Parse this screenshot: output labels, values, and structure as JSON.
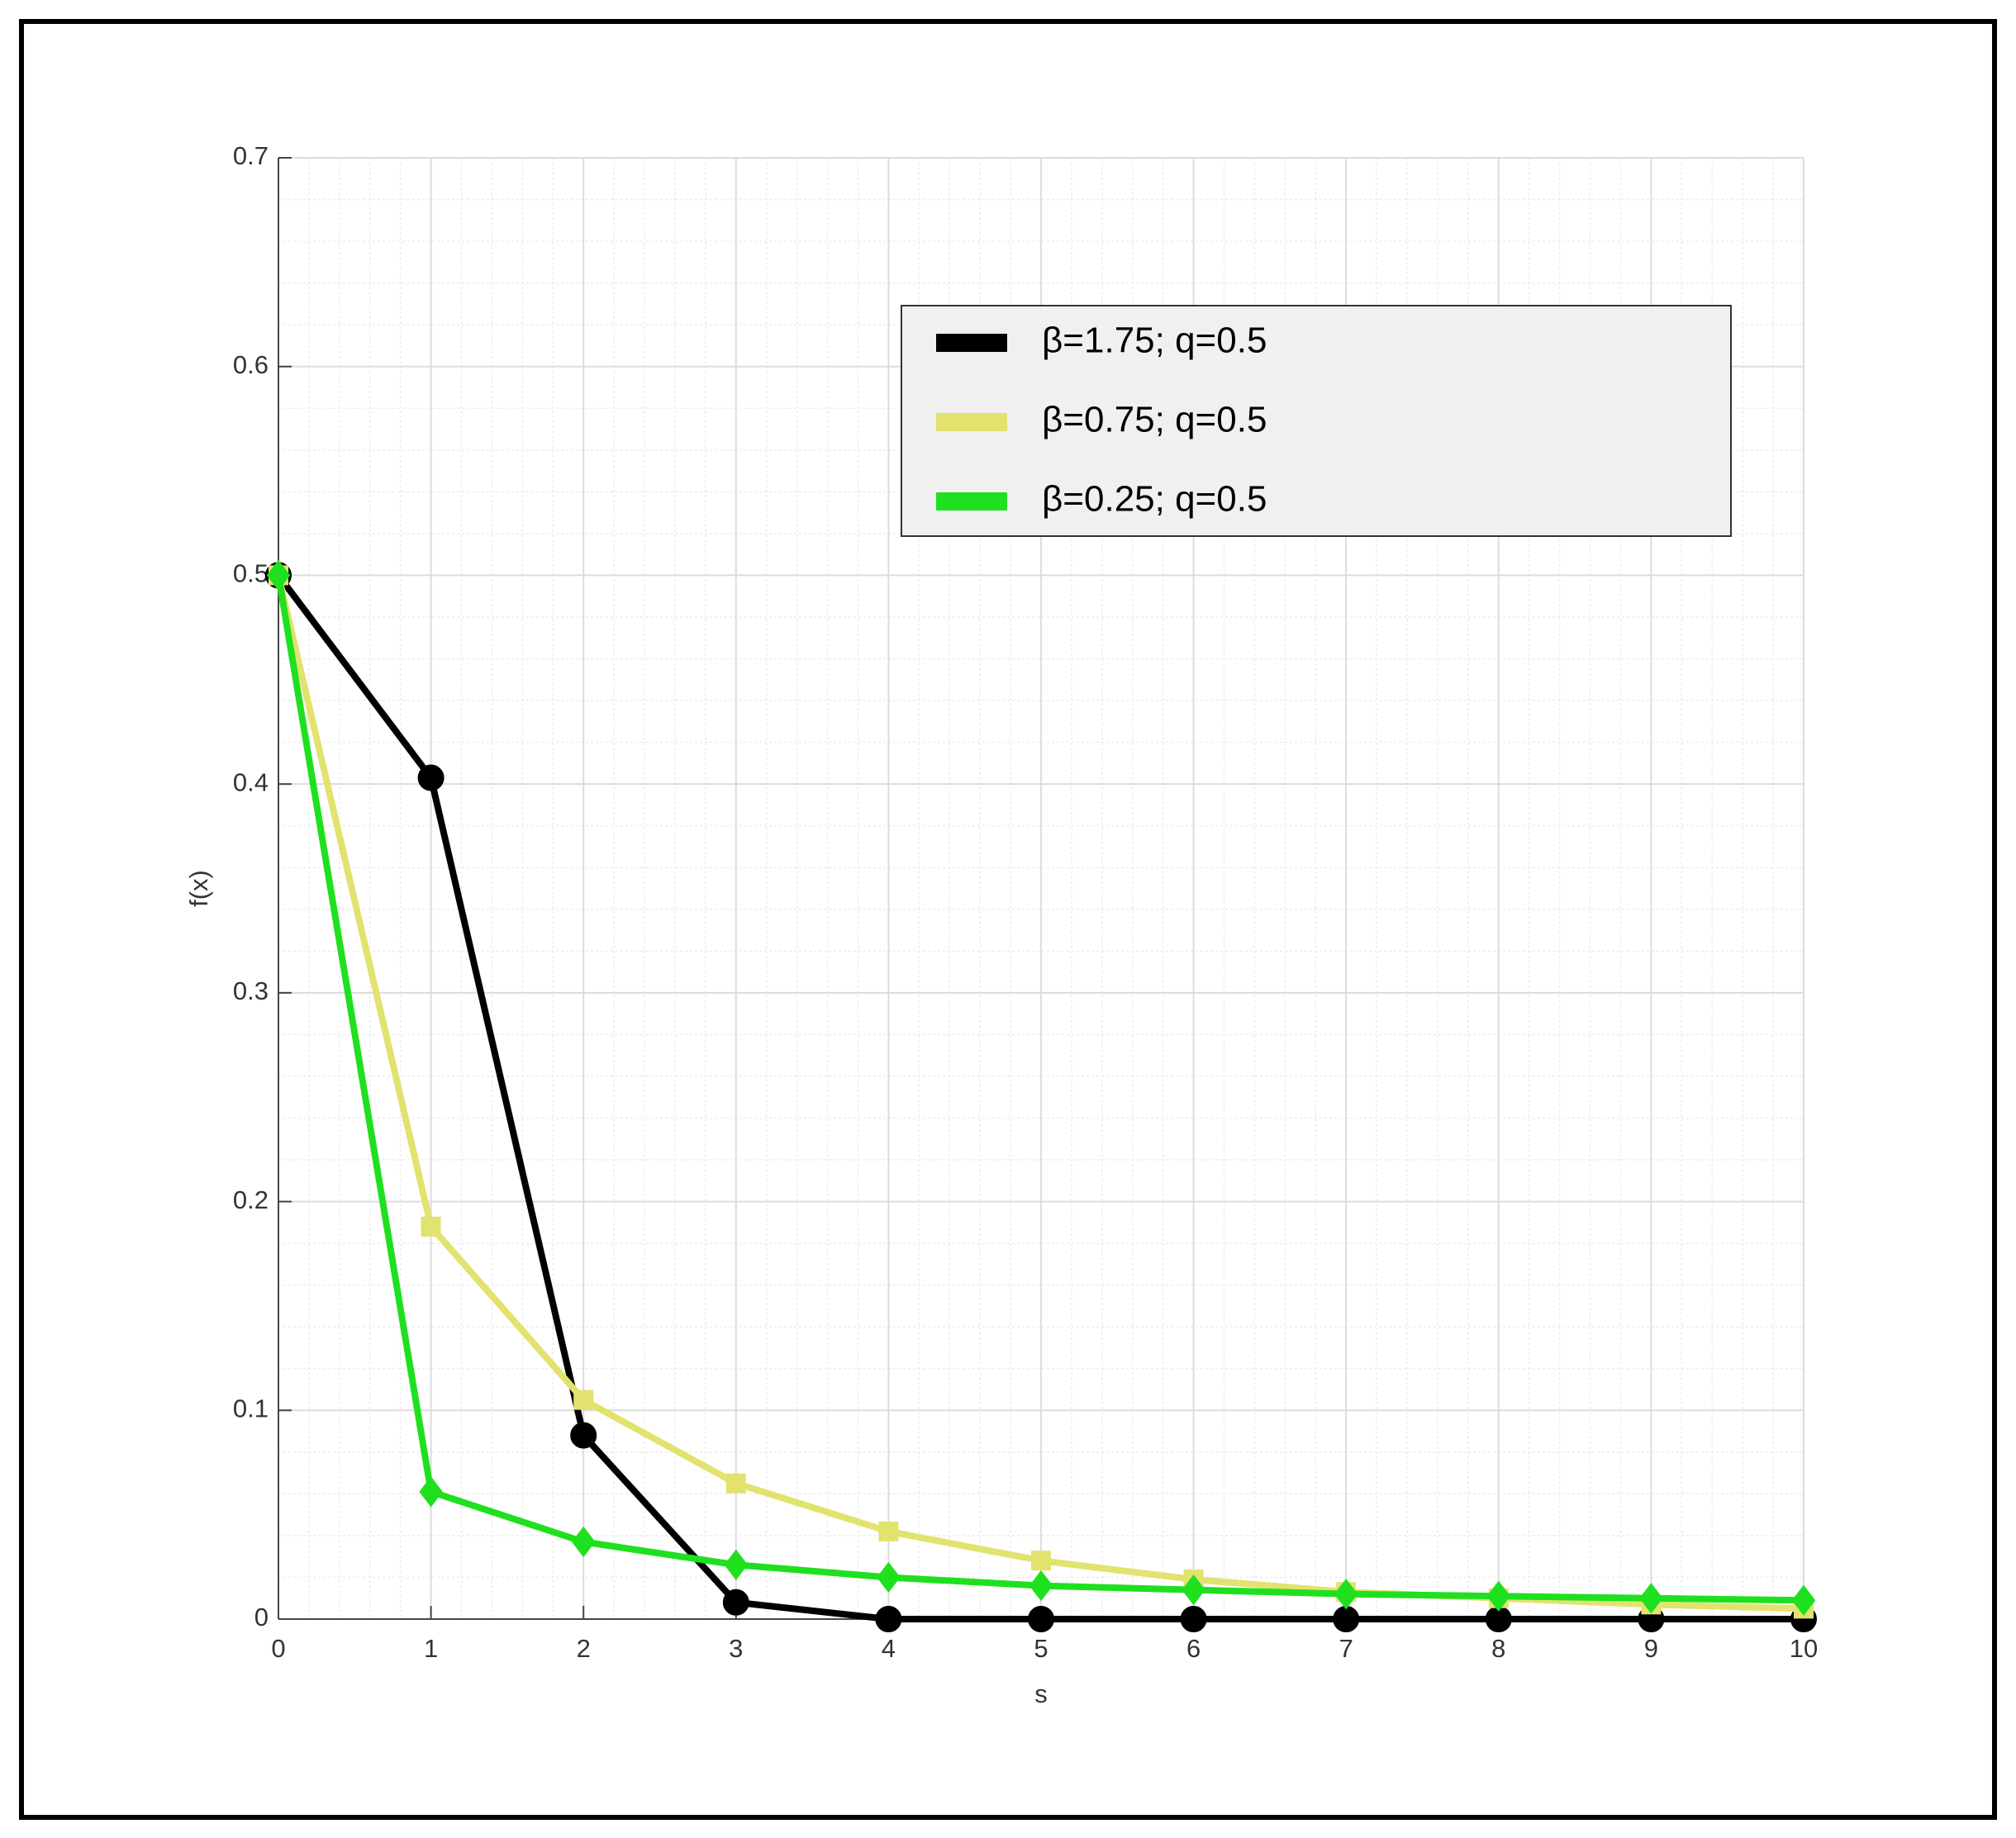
{
  "chart_data": {
    "type": "line",
    "x": [
      0,
      1,
      2,
      3,
      4,
      5,
      6,
      7,
      8,
      9,
      10
    ],
    "series": [
      {
        "name": "β=1.75; q=0.5",
        "color": "#000000",
        "marker": "circle",
        "values": [
          0.5,
          0.403,
          0.088,
          0.008,
          0,
          0,
          0,
          0,
          0,
          0,
          0
        ]
      },
      {
        "name": "β=0.75; q=0.5",
        "color": "#e2e26e",
        "marker": "square",
        "values": [
          0.5,
          0.188,
          0.105,
          0.065,
          0.042,
          0.028,
          0.019,
          0.013,
          0.01,
          0.007,
          0.005
        ]
      },
      {
        "name": "β=0.25; q=0.5",
        "color": "#1fe01f",
        "marker": "diamond",
        "values": [
          0.5,
          0.061,
          0.037,
          0.026,
          0.02,
          0.016,
          0.014,
          0.012,
          0.011,
          0.01,
          0.009
        ]
      }
    ],
    "xlabel": "s",
    "ylabel": "f(x)",
    "xlim": [
      0,
      10
    ],
    "ylim": [
      0,
      0.7
    ],
    "xticks": [
      0,
      1,
      2,
      3,
      4,
      5,
      6,
      7,
      8,
      9,
      10
    ],
    "yticks": [
      0,
      0.1,
      0.2,
      0.3,
      0.4,
      0.5,
      0.6,
      0.7
    ],
    "grid": true,
    "minor_grid": true,
    "legend": "upper right"
  }
}
